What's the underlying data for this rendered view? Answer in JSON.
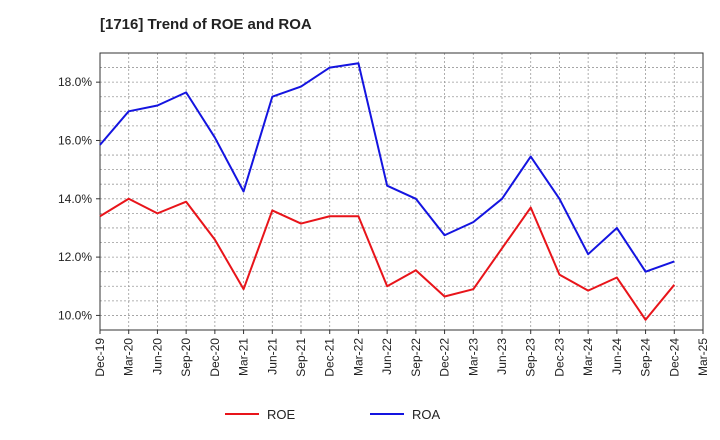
{
  "chart_data": {
    "type": "line",
    "title": "[1716]  Trend of ROE and ROA",
    "xlabel": "",
    "ylabel": "",
    "x": [
      "Dec-19",
      "Mar-20",
      "Jun-20",
      "Sep-20",
      "Dec-20",
      "Mar-21",
      "Jun-21",
      "Sep-21",
      "Dec-21",
      "Mar-22",
      "Jun-22",
      "Sep-22",
      "Dec-22",
      "Mar-23",
      "Jun-23",
      "Sep-23",
      "Dec-23",
      "Mar-24",
      "Jun-24",
      "Sep-24",
      "Dec-24",
      "Mar-25"
    ],
    "ylim": [
      9.5,
      19.0
    ],
    "yticks": [
      10.0,
      12.0,
      14.0,
      16.0,
      18.0
    ],
    "ytick_labels": [
      "10.0%",
      "12.0%",
      "14.0%",
      "16.0%",
      "18.0%"
    ],
    "grid": true,
    "legend_position": "bottom-center",
    "series": [
      {
        "name": "ROE",
        "color": "#e8141a",
        "values": [
          13.4,
          14.0,
          13.5,
          13.9,
          12.6,
          10.9,
          13.6,
          13.15,
          13.4,
          13.4,
          11.0,
          11.55,
          10.65,
          10.9,
          12.3,
          13.7,
          11.4,
          10.85,
          11.3,
          9.85,
          11.05,
          null
        ]
      },
      {
        "name": "ROA",
        "color": "#1414e0",
        "values": [
          15.85,
          17.0,
          17.2,
          17.65,
          16.1,
          14.25,
          17.5,
          17.85,
          18.5,
          18.65,
          14.45,
          14.0,
          12.75,
          13.2,
          14.0,
          15.45,
          14.0,
          12.1,
          13.0,
          11.5,
          11.85,
          null
        ]
      }
    ]
  }
}
